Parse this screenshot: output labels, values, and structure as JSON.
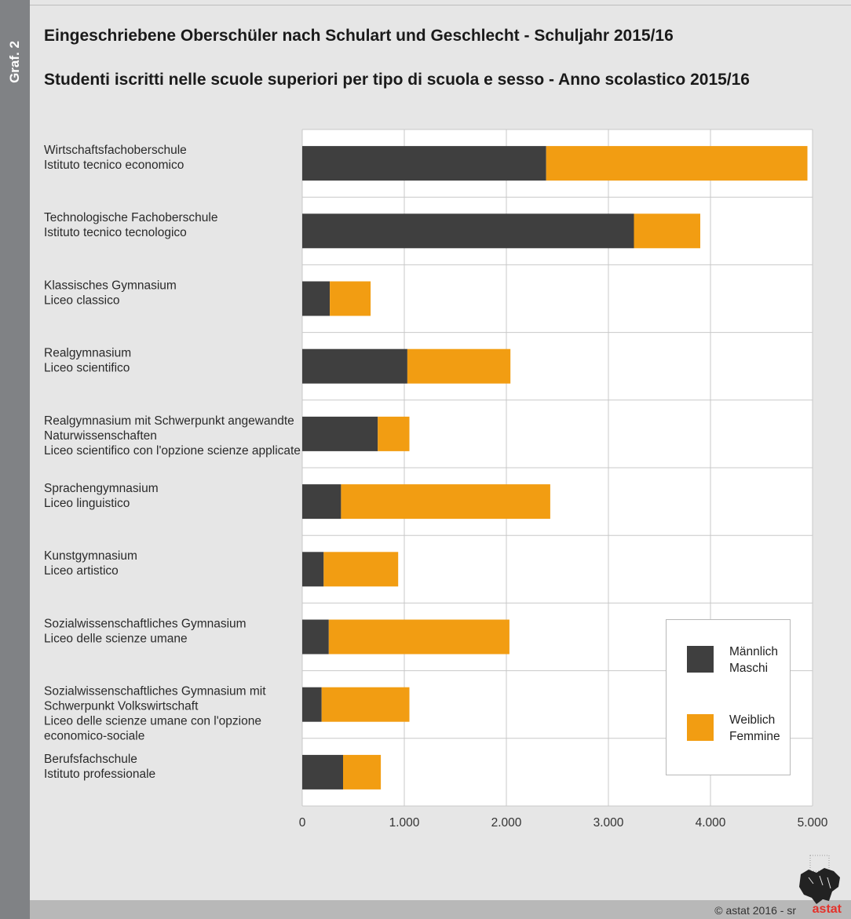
{
  "side_label": "Graf. 2",
  "colors": {
    "male": "#3f3f3f",
    "female": "#f29d12",
    "grid": "#c8c8c8"
  },
  "footer": {
    "copyright": "© astat 2016 - sr",
    "logo_text": "astat",
    "logo_icon": "south-tyrol-map-icon"
  },
  "chart_data": {
    "type": "bar",
    "orientation": "horizontal",
    "stacked": true,
    "title": "Eingeschriebene Oberschüler nach Schulart und Geschlecht - Schuljahr 2015/16",
    "subtitle": "Studenti iscritti nelle scuole superiori per tipo di scuola e sesso - Anno scolastico 2015/16",
    "categories": [
      [
        "Wirtschaftsfachoberschule",
        "Istituto tecnico economico"
      ],
      [
        "Technologische Fachoberschule",
        "Istituto tecnico tecnologico"
      ],
      [
        "Klassisches Gymnasium",
        "Liceo classico"
      ],
      [
        "Realgymnasium",
        "Liceo scientifico"
      ],
      [
        "Realgymnasium mit Schwerpunkt angewandte",
        "Naturwissenschaften",
        "Liceo scientifico con l'opzione scienze applicate"
      ],
      [
        "Sprachengymnasium",
        "Liceo linguistico"
      ],
      [
        "Kunstgymnasium",
        "Liceo artistico"
      ],
      [
        "Sozialwissenschaftliches Gymnasium",
        "Liceo delle scienze umane"
      ],
      [
        "Sozialwissenschaftliches Gymnasium mit",
        "Schwerpunkt Volkswirtschaft",
        "Liceo delle scienze umane con l'opzione",
        "economico-sociale"
      ],
      [
        "Berufsfachschule",
        "Istituto professionale"
      ]
    ],
    "series": [
      {
        "name": [
          "Männlich",
          "Maschi"
        ],
        "values": [
          2390,
          3250,
          270,
          1030,
          740,
          380,
          210,
          260,
          190,
          400
        ]
      },
      {
        "name": [
          "Weiblich",
          "Femmine"
        ],
        "values": [
          2560,
          650,
          400,
          1010,
          310,
          2050,
          730,
          1770,
          860,
          370
        ]
      }
    ],
    "xlim": [
      0,
      5000
    ],
    "xticks": [
      0,
      1000,
      2000,
      3000,
      4000,
      5000
    ],
    "xtick_labels": [
      "0",
      "1.000",
      "2.000",
      "3.000",
      "4.000",
      "5.000"
    ],
    "grid": true,
    "legend": "bottom-right"
  }
}
